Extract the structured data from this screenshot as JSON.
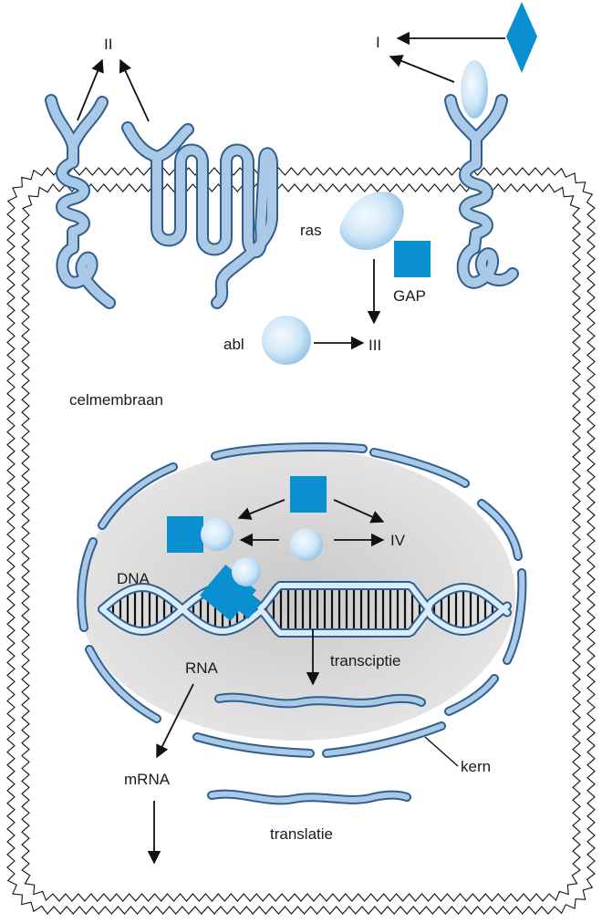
{
  "labels": {
    "roman_one": "I",
    "roman_two": "II",
    "roman_three": "III",
    "roman_four": "IV",
    "ras": "ras",
    "gap": "GAP",
    "abl": "abl",
    "celmembraan": "celmembraan",
    "dna": "DNA",
    "rna": "RNA",
    "transcriptie": "transciptie",
    "mrna": "mRNA",
    "kern": "kern",
    "translatie": "translatie"
  },
  "colors": {
    "protein_fill": "#a9c9e6",
    "protein_stroke": "#2e5f8f",
    "signal_blue": "#0a8fd0",
    "nucleus_fill": "#d9d9d9",
    "membrane": "#000000",
    "bubble_light": "#eaf4fb",
    "bubble_mid": "#a6d0ee"
  }
}
